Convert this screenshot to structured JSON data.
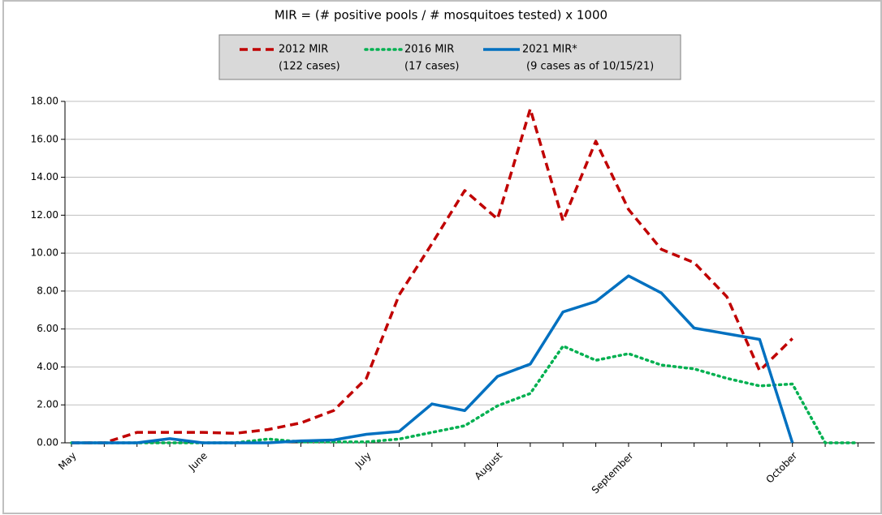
{
  "chart_data": {
    "type": "line",
    "title": "MIR = (# positive pools / # mosquitoes tested) x 1000",
    "categories": [
      "May",
      null,
      null,
      null,
      "June",
      null,
      null,
      null,
      null,
      "July",
      null,
      null,
      null,
      "August",
      null,
      null,
      null,
      "September",
      null,
      null,
      null,
      null,
      "October",
      null,
      null
    ],
    "series": [
      {
        "name": "2012 MIR",
        "legend_note": "(122 cases)",
        "color": "#c00000",
        "dash": "dashed",
        "values": [
          0,
          0,
          0.55,
          0.55,
          0.55,
          0.5,
          0.7,
          1.05,
          1.7,
          3.4,
          7.8,
          10.5,
          13.3,
          11.8,
          17.6,
          11.7,
          15.9,
          12.3,
          10.2,
          9.5,
          7.7,
          3.8,
          5.5,
          null,
          null
        ]
      },
      {
        "name": "2016 MIR",
        "legend_note": "(17 cases)",
        "color": "#00b050",
        "dash": "dotted",
        "values": [
          0,
          0,
          0,
          0,
          0,
          0,
          0.2,
          0.05,
          0.05,
          0.05,
          0.2,
          0.55,
          0.9,
          1.95,
          2.6,
          5.1,
          4.35,
          4.7,
          4.1,
          3.9,
          3.4,
          3.0,
          3.1,
          0,
          0
        ]
      },
      {
        "name": "2021 MIR*",
        "legend_note": "(9 cases as of 10/15/21)",
        "color": "#0070c0",
        "dash": "solid",
        "values": [
          0,
          0,
          0,
          0.22,
          0,
          0,
          0,
          0.1,
          0.15,
          0.45,
          0.6,
          2.05,
          1.7,
          3.5,
          4.15,
          6.9,
          7.45,
          8.8,
          7.9,
          6.05,
          5.75,
          5.45,
          0,
          null,
          null
        ]
      }
    ],
    "ylim": [
      0,
      18
    ],
    "yticks": [
      {
        "value": 0,
        "label": "0.00"
      },
      {
        "value": 2,
        "label": "2.00"
      },
      {
        "value": 4,
        "label": "4.00"
      },
      {
        "value": 6,
        "label": "6.00"
      },
      {
        "value": 8,
        "label": "8.00"
      },
      {
        "value": 10,
        "label": "10.00"
      },
      {
        "value": 12,
        "label": "12.00"
      },
      {
        "value": 14,
        "label": "14.00"
      },
      {
        "value": 16,
        "label": "16.00"
      },
      {
        "value": 18,
        "label": "18.00"
      }
    ],
    "grid": true
  }
}
